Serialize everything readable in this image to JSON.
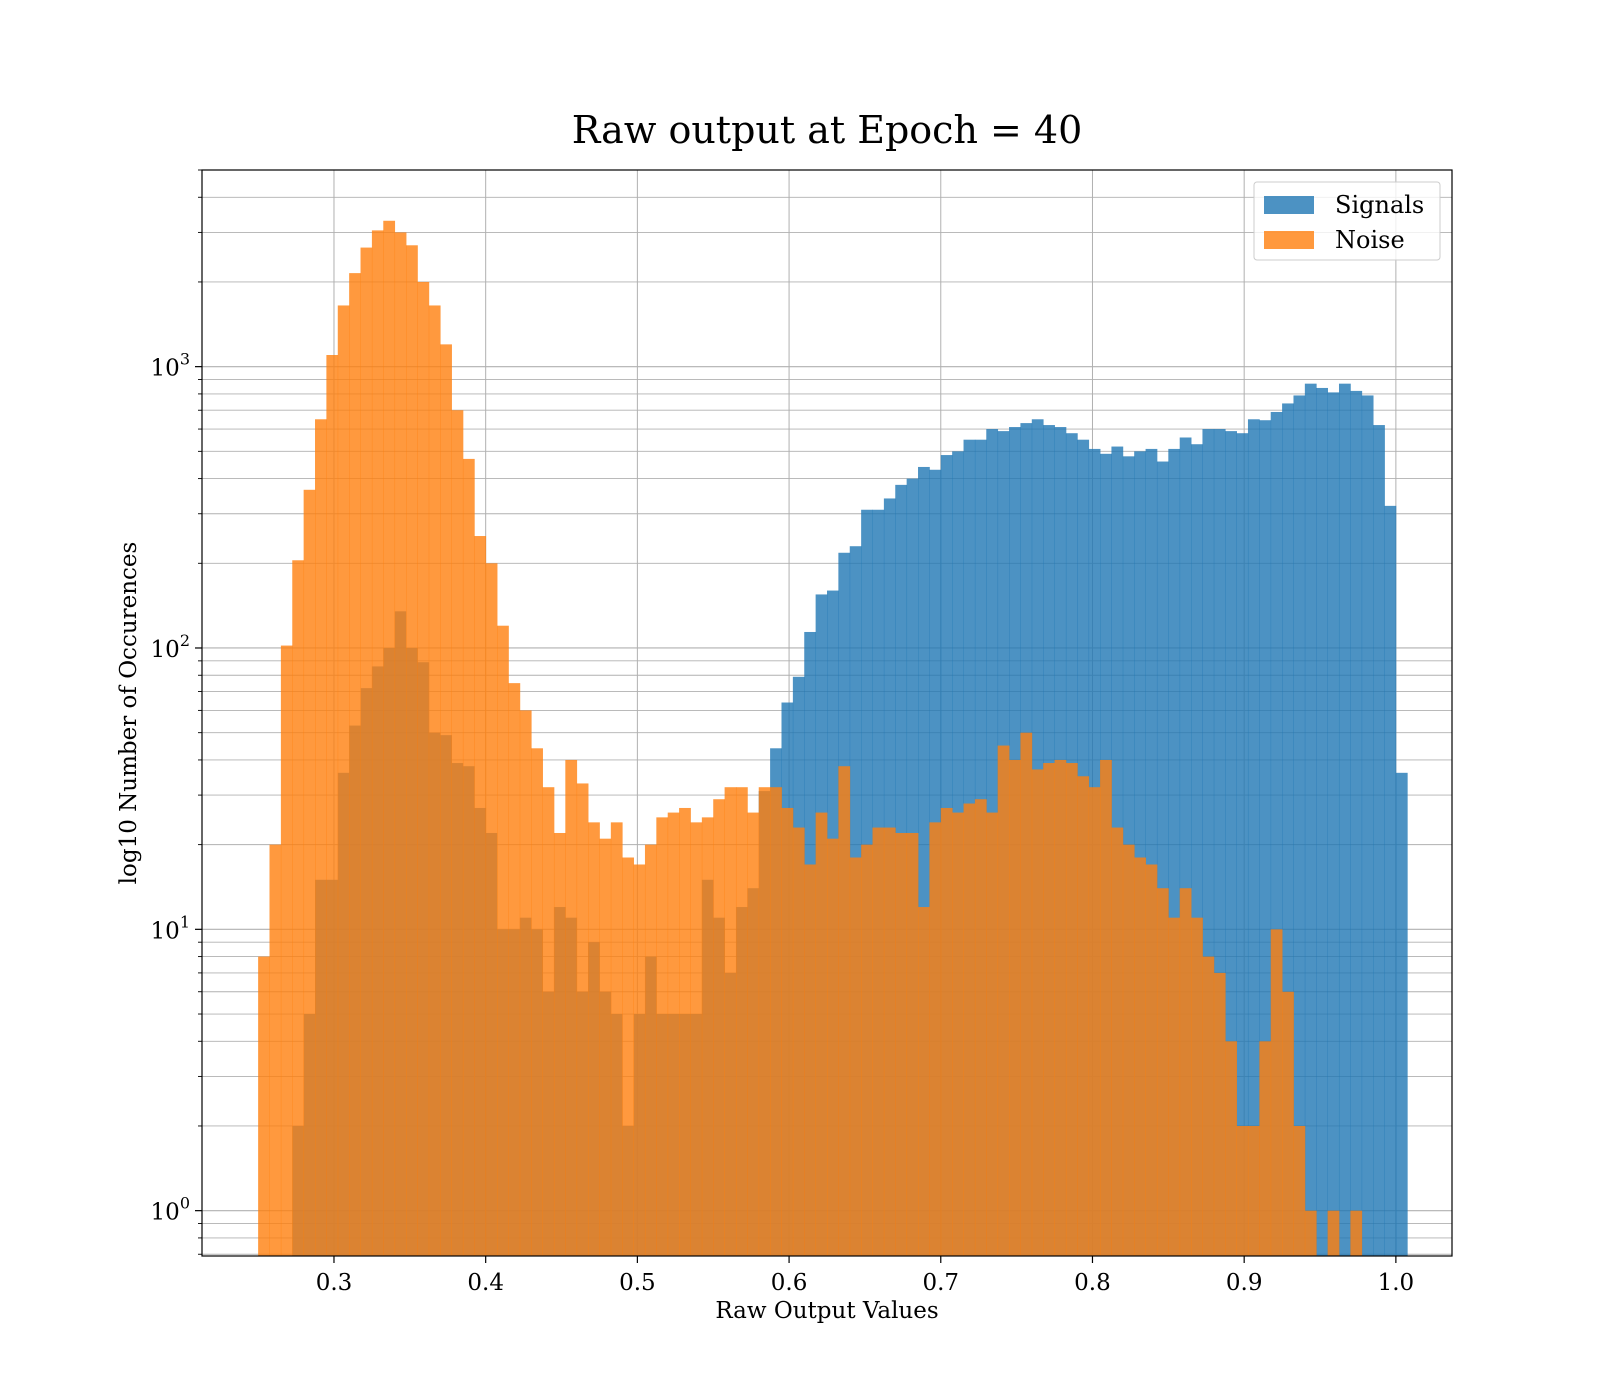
{
  "chart_data": {
    "type": "bar",
    "title": "Raw output at Epoch = 40",
    "xlabel": "Raw Output Values",
    "ylabel": "log10 Number of Occurences",
    "y_scale": "log",
    "xlim": [
      0.213,
      1.037
    ],
    "ylim": [
      0.69,
      5000
    ],
    "x_ticks": [
      "0.3",
      "0.4",
      "0.5",
      "0.6",
      "0.7",
      "0.8",
      "0.9",
      "1.0"
    ],
    "y_ticks": [
      {
        "base": "10",
        "exp": "0"
      },
      {
        "base": "10",
        "exp": "1"
      },
      {
        "base": "10",
        "exp": "2"
      },
      {
        "base": "10",
        "exp": "3"
      }
    ],
    "grid": true,
    "legend_position": "top-right",
    "bin_start": 0.25,
    "bin_width": 0.0075,
    "series": [
      {
        "name": "Signals",
        "color": "#1f77b4",
        "values": [
          0,
          0,
          0,
          2,
          5,
          15,
          15,
          36,
          53,
          72,
          86,
          100,
          135,
          100,
          89,
          50,
          49,
          39,
          38,
          27,
          22,
          10,
          10,
          11,
          10,
          6,
          12,
          11,
          6,
          9,
          6,
          5,
          2,
          5,
          8,
          5,
          5,
          5,
          5,
          15,
          11,
          7,
          12,
          14,
          31,
          44,
          64,
          79,
          114,
          155,
          160,
          218,
          230,
          310,
          310,
          340,
          380,
          400,
          440,
          430,
          485,
          500,
          550,
          550,
          600,
          590,
          610,
          630,
          650,
          620,
          610,
          580,
          550,
          510,
          490,
          520,
          480,
          500,
          510,
          460,
          510,
          560,
          530,
          600,
          600,
          590,
          580,
          650,
          645,
          690,
          740,
          790,
          870,
          840,
          810,
          870,
          820,
          790,
          620,
          320,
          36
        ]
      },
      {
        "name": "Noise",
        "color": "#ff7f0e",
        "values": [
          8,
          20,
          102,
          205,
          365,
          650,
          1100,
          1650,
          2150,
          2650,
          3050,
          3300,
          3000,
          2700,
          2000,
          1650,
          1200,
          700,
          470,
          250,
          200,
          120,
          75,
          60,
          44,
          32,
          22,
          40,
          33,
          24,
          21,
          24,
          18,
          17,
          20,
          25,
          26,
          27,
          24,
          25,
          29,
          32,
          32,
          26,
          32,
          32,
          27,
          23,
          17,
          26,
          21,
          38,
          18,
          20,
          23,
          23,
          22,
          22,
          12,
          24,
          27,
          26,
          28,
          29,
          26,
          45,
          40,
          50,
          37,
          39,
          40,
          39,
          35,
          32,
          40,
          23,
          20,
          18,
          17,
          14,
          11,
          14,
          11,
          8,
          7,
          4,
          2,
          2,
          4,
          10,
          6,
          2,
          1,
          0,
          1,
          0,
          1,
          0,
          0,
          0,
          0
        ]
      }
    ]
  }
}
